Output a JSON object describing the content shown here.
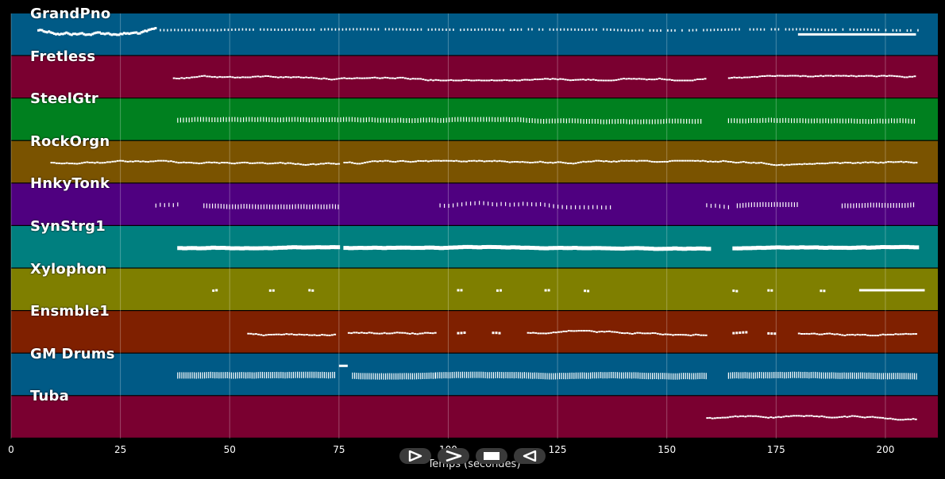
{
  "tracks": [
    {
      "name": "GrandPno",
      "color": "#005a86"
    },
    {
      "name": "Fretless",
      "color": "#7a0030"
    },
    {
      "name": "SteelGtr",
      "color": "#00801f"
    },
    {
      "name": "RockOrgn",
      "color": "#7a5300"
    },
    {
      "name": "HnkyTonk",
      "color": "#4f0080"
    },
    {
      "name": "SynStrg1",
      "color": "#007f7f"
    },
    {
      "name": "Xylophon",
      "color": "#7f7f00"
    },
    {
      "name": "Ensmble1",
      "color": "#7f2000"
    },
    {
      "name": "GM Drums",
      "color": "#005a86"
    },
    {
      "name": "Tuba",
      "color": "#7a0030"
    }
  ],
  "x_axis": {
    "label": "Temps (secondes)",
    "ticks": [
      "0",
      "25",
      "50",
      "75",
      "100",
      "125",
      "150",
      "175",
      "200"
    ],
    "range": [
      0,
      212
    ]
  },
  "controls": [
    {
      "name": "play-button",
      "icon": "play-icon"
    },
    {
      "name": "forward-button",
      "icon": "forward-icon"
    },
    {
      "name": "stop-button",
      "icon": "stop-icon"
    },
    {
      "name": "rewind-button",
      "icon": "rewind-icon"
    }
  ],
  "note_activity": [
    {
      "segments": [
        [
          6,
          33,
          "dense"
        ],
        [
          34,
          208,
          "sparse"
        ],
        [
          180,
          207,
          "sustain"
        ]
      ]
    },
    {
      "segments": [
        [
          37,
          159,
          "run"
        ],
        [
          164,
          207,
          "run"
        ]
      ]
    },
    {
      "segments": [
        [
          38,
          158,
          "staccato"
        ],
        [
          164,
          207,
          "staccato"
        ]
      ]
    },
    {
      "segments": [
        [
          9,
          75,
          "run"
        ],
        [
          76,
          207,
          "run"
        ]
      ]
    },
    {
      "segments": [
        [
          33,
          38,
          "scatter"
        ],
        [
          44,
          75,
          "staccato"
        ],
        [
          98,
          137,
          "scatter"
        ],
        [
          159,
          164,
          "scatter"
        ],
        [
          166,
          180,
          "staccato"
        ],
        [
          190,
          207,
          "staccato"
        ]
      ]
    },
    {
      "segments": [
        [
          38,
          74,
          "thick"
        ],
        [
          76,
          159,
          "thick"
        ],
        [
          165,
          207,
          "thick"
        ]
      ]
    },
    {
      "segments": [
        [
          46,
          47,
          "dot"
        ],
        [
          59,
          60,
          "dot"
        ],
        [
          68,
          69,
          "dot"
        ],
        [
          102,
          103,
          "dot"
        ],
        [
          111,
          112,
          "dot"
        ],
        [
          122,
          123,
          "dot"
        ],
        [
          131,
          132,
          "dot"
        ],
        [
          165,
          166,
          "dot"
        ],
        [
          173,
          174,
          "dot"
        ],
        [
          185,
          186,
          "dot"
        ],
        [
          194,
          209,
          "sustain"
        ]
      ]
    },
    {
      "segments": [
        [
          54,
          74,
          "run"
        ],
        [
          77,
          97,
          "run"
        ],
        [
          102,
          104,
          "dot"
        ],
        [
          110,
          112,
          "dot"
        ],
        [
          118,
          159,
          "run"
        ],
        [
          165,
          168,
          "dot"
        ],
        [
          173,
          175,
          "dot"
        ],
        [
          180,
          207,
          "run"
        ]
      ]
    },
    {
      "segments": [
        [
          38,
          74,
          "drum"
        ],
        [
          75,
          77,
          "hit"
        ],
        [
          78,
          97,
          "drum"
        ],
        [
          97,
          159,
          "drum"
        ],
        [
          164,
          207,
          "drum"
        ]
      ]
    },
    {
      "segments": [
        [
          159,
          207,
          "run"
        ]
      ]
    }
  ]
}
